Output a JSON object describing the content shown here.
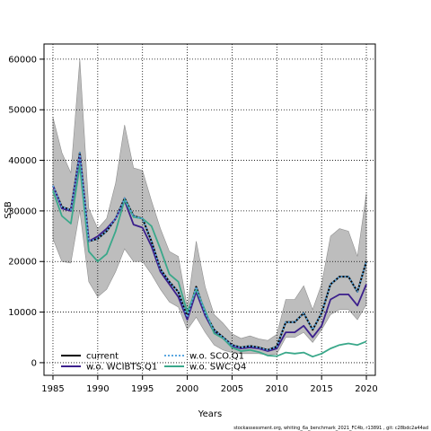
{
  "chart_data": {
    "type": "line",
    "xlabel": "Years",
    "ylabel": "SSB",
    "xlim": [
      1984,
      2021
    ],
    "ylim": [
      -2500,
      63000
    ],
    "xticks": [
      1985,
      1990,
      1995,
      2000,
      2005,
      2010,
      2015,
      2020
    ],
    "yticks": [
      0,
      10000,
      20000,
      30000,
      40000,
      50000,
      60000
    ],
    "grid": true,
    "legend_position": "bottom-left",
    "footnote": "stockassessment.org, whiting_6a_benchmark_2021_FC4b, r13891 , git: c28bdc2a44ad",
    "x": [
      1985,
      1986,
      1987,
      1988,
      1989,
      1990,
      1991,
      1992,
      1993,
      1994,
      1995,
      1996,
      1997,
      1998,
      1999,
      2000,
      2001,
      2002,
      2003,
      2004,
      2005,
      2006,
      2007,
      2008,
      2009,
      2010,
      2011,
      2012,
      2013,
      2014,
      2015,
      2016,
      2017,
      2018,
      2019,
      2020
    ],
    "band": {
      "upper": [
        48500,
        41500,
        37500,
        60000,
        30500,
        26500,
        28500,
        35500,
        47000,
        38500,
        38000,
        32000,
        26500,
        22000,
        21000,
        11000,
        24000,
        15000,
        9500,
        7800,
        5700,
        4800,
        5300,
        4700,
        4400,
        5600,
        12500,
        12500,
        15200,
        10500,
        15500,
        25000,
        26500,
        26000,
        21000,
        33500
      ],
      "lower": [
        24500,
        20000,
        19700,
        30000,
        16000,
        13000,
        14500,
        18000,
        22500,
        20000,
        20000,
        17500,
        14500,
        12000,
        11000,
        6500,
        9000,
        6000,
        3500,
        2500,
        2000,
        1800,
        1800,
        1800,
        1500,
        1700,
        5000,
        5000,
        6000,
        4000,
        6500,
        9500,
        10500,
        10500,
        8500,
        11500
      ]
    },
    "series": [
      {
        "name": "current",
        "color": "#000000",
        "dash": "",
        "values": [
          35000,
          30800,
          30200,
          41500,
          24000,
          24500,
          26000,
          28500,
          32500,
          29000,
          28500,
          24000,
          18500,
          16000,
          14000,
          9000,
          15000,
          9800,
          6500,
          5000,
          3500,
          3000,
          3300,
          3000,
          2500,
          3200,
          8000,
          8000,
          9800,
          6500,
          9800,
          15500,
          17000,
          17000,
          14000,
          20000
        ]
      },
      {
        "name": "w.o. SCO.Q1",
        "color": "#5ba7e0",
        "dash": "2,2",
        "values": [
          35000,
          30800,
          30200,
          41500,
          24000,
          24500,
          26000,
          28500,
          32500,
          29000,
          28500,
          24000,
          18500,
          16000,
          14000,
          9000,
          15000,
          9800,
          6500,
          5000,
          3500,
          3000,
          3300,
          3000,
          2500,
          3200,
          8000,
          8000,
          9800,
          6500,
          9800,
          15500,
          17000,
          17000,
          14000,
          20000
        ]
      },
      {
        "name": "w.o. WCIBTS.Q1",
        "color": "#3b1f8c",
        "dash": "",
        "values": [
          35000,
          30500,
          30000,
          41000,
          24000,
          25000,
          26500,
          28500,
          32000,
          27300,
          26700,
          23000,
          18000,
          15500,
          13000,
          8500,
          14000,
          9300,
          6000,
          4800,
          3300,
          2800,
          3000,
          2800,
          2300,
          2800,
          6000,
          6000,
          7300,
          5000,
          7300,
          12500,
          13500,
          13500,
          11300,
          15500
        ]
      },
      {
        "name": "w.o. SWC.Q4",
        "color": "#3aa88a",
        "dash": "",
        "values": [
          34000,
          29000,
          27500,
          39000,
          22000,
          20000,
          21500,
          26000,
          32200,
          28800,
          28500,
          27000,
          22500,
          17500,
          16000,
          10000,
          14500,
          10300,
          5800,
          4800,
          3000,
          2300,
          2500,
          2100,
          1400,
          1300,
          2000,
          1800,
          2000,
          1200,
          1800,
          2800,
          3500,
          3800,
          3500,
          4200
        ]
      }
    ]
  }
}
